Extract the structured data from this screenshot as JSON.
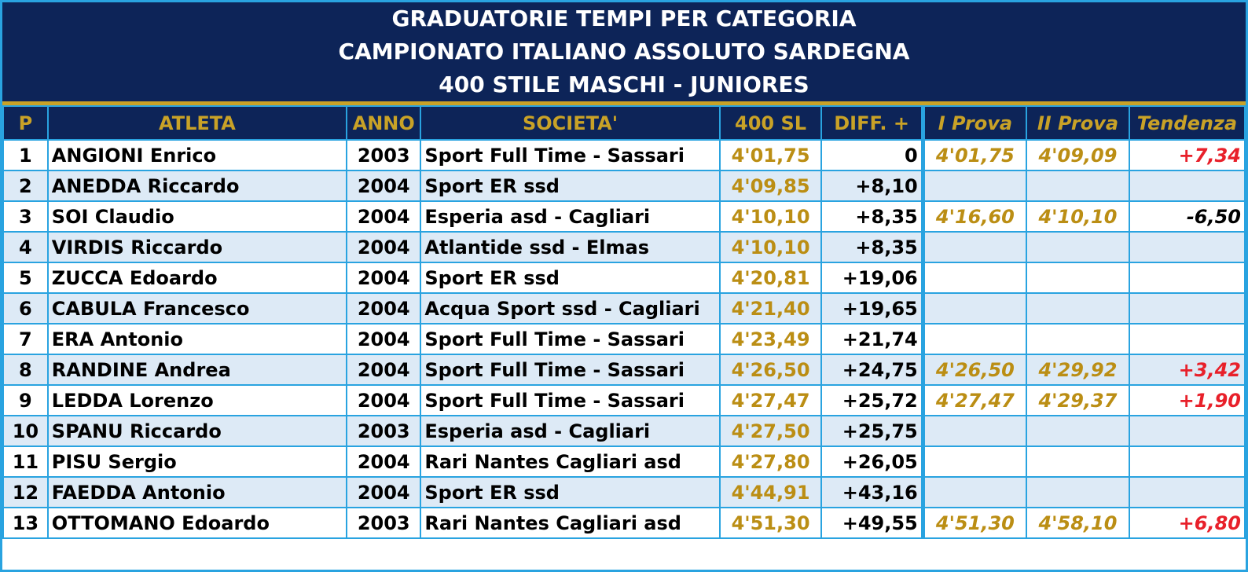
{
  "title": {
    "line1": "GRADUATORIE TEMPI PER CATEGORIA",
    "line2": "CAMPIONATO ITALIANO ASSOLUTO SARDEGNA",
    "line3": "400 STILE MASCHI - JUNIORES"
  },
  "colors": {
    "header_bg": "#0d2458",
    "gold": "#c9a227",
    "grid_line": "#29a3e0",
    "alt_row": "#ddeaf6",
    "positive_trend": "#e8202a",
    "negative_trend": "#000000"
  },
  "columns": [
    "P",
    "ATLETA",
    "ANNO",
    "SOCIETA'",
    "400 SL",
    "DIFF. +",
    "I Prova",
    "II Prova",
    "Tendenza"
  ],
  "rows": [
    {
      "p": "1",
      "atleta": "ANGIONI Enrico",
      "anno": "2003",
      "societa": "Sport Full Time - Sassari",
      "tempo": "4'01,75",
      "diff": "0",
      "prova1": "4'01,75",
      "prova2": "4'09,09",
      "tendenza": "+7,34",
      "trend_sign": "positive"
    },
    {
      "p": "2",
      "atleta": "ANEDDA Riccardo",
      "anno": "2004",
      "societa": "Sport ER ssd",
      "tempo": "4'09,85",
      "diff": "+8,10",
      "prova1": "",
      "prova2": "",
      "tendenza": "",
      "trend_sign": ""
    },
    {
      "p": "3",
      "atleta": "SOI Claudio",
      "anno": "2004",
      "societa": "Esperia asd - Cagliari",
      "tempo": "4'10,10",
      "diff": "+8,35",
      "prova1": "4'16,60",
      "prova2": "4'10,10",
      "tendenza": "-6,50",
      "trend_sign": "negative"
    },
    {
      "p": "4",
      "atleta": "VIRDIS Riccardo",
      "anno": "2004",
      "societa": "Atlantide ssd - Elmas",
      "tempo": "4'10,10",
      "diff": "+8,35",
      "prova1": "",
      "prova2": "",
      "tendenza": "",
      "trend_sign": ""
    },
    {
      "p": "5",
      "atleta": "ZUCCA Edoardo",
      "anno": "2004",
      "societa": "Sport ER ssd",
      "tempo": "4'20,81",
      "diff": "+19,06",
      "prova1": "",
      "prova2": "",
      "tendenza": "",
      "trend_sign": ""
    },
    {
      "p": "6",
      "atleta": "CABULA Francesco",
      "anno": "2004",
      "societa": "Acqua Sport ssd - Cagliari",
      "tempo": "4'21,40",
      "diff": "+19,65",
      "prova1": "",
      "prova2": "",
      "tendenza": "",
      "trend_sign": ""
    },
    {
      "p": "7",
      "atleta": "ERA Antonio",
      "anno": "2004",
      "societa": "Sport Full Time - Sassari",
      "tempo": "4'23,49",
      "diff": "+21,74",
      "prova1": "",
      "prova2": "",
      "tendenza": "",
      "trend_sign": ""
    },
    {
      "p": "8",
      "atleta": "RANDINE Andrea",
      "anno": "2004",
      "societa": "Sport Full Time - Sassari",
      "tempo": "4'26,50",
      "diff": "+24,75",
      "prova1": "4'26,50",
      "prova2": "4'29,92",
      "tendenza": "+3,42",
      "trend_sign": "positive"
    },
    {
      "p": "9",
      "atleta": "LEDDA Lorenzo",
      "anno": "2004",
      "societa": "Sport Full Time - Sassari",
      "tempo": "4'27,47",
      "diff": "+25,72",
      "prova1": "4'27,47",
      "prova2": "4'29,37",
      "tendenza": "+1,90",
      "trend_sign": "positive"
    },
    {
      "p": "10",
      "atleta": "SPANU Riccardo",
      "anno": "2003",
      "societa": "Esperia asd - Cagliari",
      "tempo": "4'27,50",
      "diff": "+25,75",
      "prova1": "",
      "prova2": "",
      "tendenza": "",
      "trend_sign": ""
    },
    {
      "p": "11",
      "atleta": "PISU Sergio",
      "anno": "2004",
      "societa": "Rari Nantes Cagliari asd",
      "tempo": "4'27,80",
      "diff": "+26,05",
      "prova1": "",
      "prova2": "",
      "tendenza": "",
      "trend_sign": ""
    },
    {
      "p": "12",
      "atleta": "FAEDDA Antonio",
      "anno": "2004",
      "societa": "Sport ER ssd",
      "tempo": "4'44,91",
      "diff": "+43,16",
      "prova1": "",
      "prova2": "",
      "tendenza": "",
      "trend_sign": ""
    },
    {
      "p": "13",
      "atleta": "OTTOMANO Edoardo",
      "anno": "2003",
      "societa": "Rari Nantes Cagliari asd",
      "tempo": "4'51,30",
      "diff": "+49,55",
      "prova1": "4'51,30",
      "prova2": "4'58,10",
      "tendenza": "+6,80",
      "trend_sign": "positive"
    }
  ]
}
